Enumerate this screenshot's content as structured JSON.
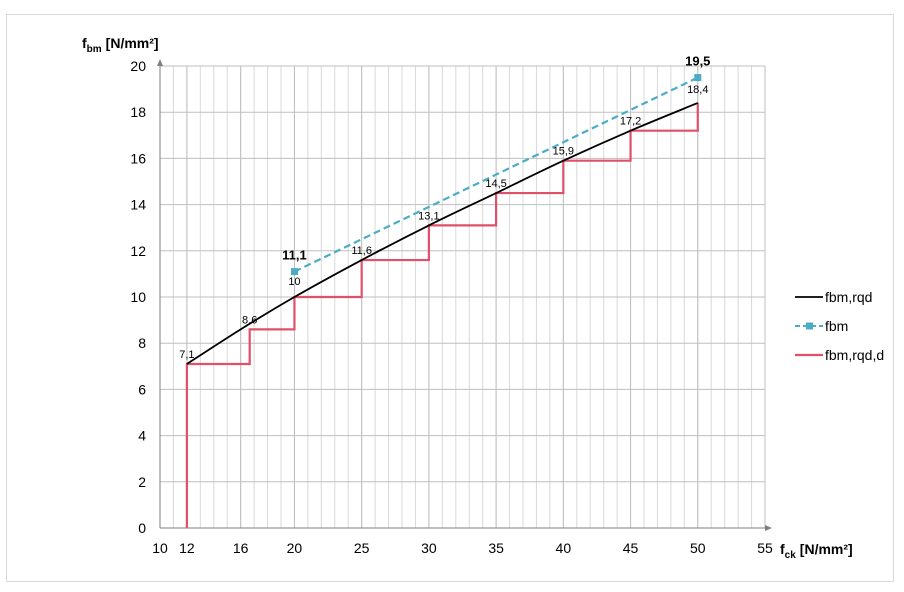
{
  "chart_data": {
    "type": "line",
    "xlabel": {
      "main": "f",
      "sub": "ck",
      "unit": "[N/mm²]"
    },
    "ylabel": {
      "main": "f",
      "sub": "bm",
      "unit": "[N/mm²]"
    },
    "xlim": [
      10,
      55
    ],
    "ylim": [
      0,
      20
    ],
    "x_ticks": [
      10,
      12,
      16,
      20,
      25,
      30,
      35,
      40,
      45,
      50,
      55
    ],
    "x_minor_step": 1,
    "y_ticks": [
      0,
      2,
      4,
      6,
      8,
      10,
      12,
      14,
      16,
      18,
      20
    ],
    "grid": true,
    "legend_position": "right",
    "series": [
      {
        "name": "fbm,rqd",
        "style": "solid-curve",
        "color": "#000000",
        "x": [
          12,
          16,
          20,
          25,
          30,
          35,
          40,
          45,
          50
        ],
        "y": [
          7.1,
          8.6,
          10,
          11.6,
          13.1,
          14.5,
          15.9,
          17.2,
          18.4
        ]
      },
      {
        "name": "fbm",
        "style": "dashed-markers",
        "color": "#4bacc6",
        "x": [
          20,
          50
        ],
        "y": [
          11.1,
          19.5
        ]
      },
      {
        "name": "fbm,rqd,d",
        "style": "step",
        "color": "#e0506a",
        "x": [
          12,
          12,
          16.67,
          16.67,
          20,
          20,
          25,
          25,
          30,
          30,
          35,
          35,
          40,
          40,
          45,
          45,
          50,
          50
        ],
        "y": [
          0,
          7.1,
          7.1,
          8.6,
          8.6,
          10,
          10,
          11.6,
          11.6,
          13.1,
          13.1,
          14.5,
          14.5,
          15.9,
          15.9,
          17.2,
          17.2,
          18.4
        ]
      }
    ],
    "data_labels": [
      {
        "x": 12,
        "y": 7.1,
        "text": "7,1",
        "bold": false
      },
      {
        "x": 16.67,
        "y": 8.6,
        "text": "8,6",
        "bold": false
      },
      {
        "x": 20,
        "y": 10,
        "text": "10",
        "bold": false
      },
      {
        "x": 25,
        "y": 11.6,
        "text": "11,6",
        "bold": false
      },
      {
        "x": 30,
        "y": 13.1,
        "text": "13,1",
        "bold": false
      },
      {
        "x": 35,
        "y": 14.5,
        "text": "14,5",
        "bold": false
      },
      {
        "x": 40,
        "y": 15.9,
        "text": "15,9",
        "bold": false
      },
      {
        "x": 45,
        "y": 17.2,
        "text": "17,2",
        "bold": false
      },
      {
        "x": 50,
        "y": 18.4,
        "text": "18,4",
        "bold": false
      },
      {
        "x": 20,
        "y": 11.1,
        "text": "11,1",
        "bold": true
      },
      {
        "x": 50,
        "y": 19.5,
        "text": "19,5",
        "bold": true
      }
    ]
  }
}
